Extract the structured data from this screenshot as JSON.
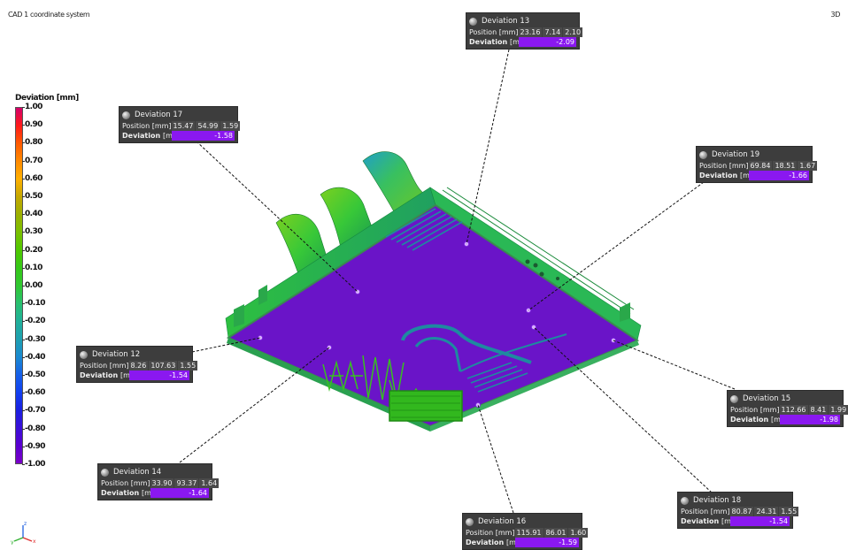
{
  "header": {
    "left": "CAD 1 coordinate system",
    "right": "3D"
  },
  "legend": {
    "title": "Deviation [mm]",
    "ticks": [
      "1.00",
      "0.90",
      "0.80",
      "0.70",
      "0.60",
      "0.50",
      "0.40",
      "0.30",
      "0.20",
      "0.10",
      "0.00",
      "-0.10",
      "-0.20",
      "-0.30",
      "-0.40",
      "-0.50",
      "-0.60",
      "-0.70",
      "-0.80",
      "-0.90",
      "-1.00"
    ],
    "colors": [
      "#d4006a",
      "#ff1a1a",
      "#ff5a00",
      "#ff8a00",
      "#ffb000",
      "#c4a800",
      "#9cb000",
      "#7ac000",
      "#4fc800",
      "#35c818",
      "#30c830",
      "#28c070",
      "#20b09a",
      "#1ea0b0",
      "#1a8ad0",
      "#1660e8",
      "#1240f0",
      "#1a20e0",
      "#3a10d8",
      "#5a00d0",
      "#7a00c8"
    ]
  },
  "triad": {
    "z": "z",
    "x": "x",
    "y": "y"
  },
  "callouts": [
    {
      "id": "13",
      "title": "Deviation 13",
      "position_label": "Position",
      "deviation_label": "Deviation",
      "unit": "[mm]",
      "x": "23.16",
      "y": "7.14",
      "z": "2.10",
      "value": "-2.09"
    },
    {
      "id": "17",
      "title": "Deviation 17",
      "position_label": "Position",
      "deviation_label": "Deviation",
      "unit": "[mm]",
      "x": "15.47",
      "y": "54.99",
      "z": "1.59",
      "value": "-1.58"
    },
    {
      "id": "19",
      "title": "Deviation 19",
      "position_label": "Position",
      "deviation_label": "Deviation",
      "unit": "[mm]",
      "x": "69.84",
      "y": "18.51",
      "z": "1.67",
      "value": "-1.66"
    },
    {
      "id": "12",
      "title": "Deviation 12",
      "position_label": "Position",
      "deviation_label": "Deviation",
      "unit": "[mm]",
      "x": "8.26",
      "y": "107.63",
      "z": "1.55",
      "value": "-1.54"
    },
    {
      "id": "15",
      "title": "Deviation 15",
      "position_label": "Position",
      "deviation_label": "Deviation",
      "unit": "[mm]",
      "x": "112.66",
      "y": "8.41",
      "z": "1.99",
      "value": "-1.98"
    },
    {
      "id": "14",
      "title": "Deviation 14",
      "position_label": "Position",
      "deviation_label": "Deviation",
      "unit": "[mm]",
      "x": "33.90",
      "y": "93.37",
      "z": "1.64",
      "value": "-1.64"
    },
    {
      "id": "18",
      "title": "Deviation 18",
      "position_label": "Position",
      "deviation_label": "Deviation",
      "unit": "[mm]",
      "x": "80.87",
      "y": "24.31",
      "z": "1.55",
      "value": "-1.54"
    },
    {
      "id": "16",
      "title": "Deviation 16",
      "position_label": "Position",
      "deviation_label": "Deviation",
      "unit": "[mm]",
      "x": "115.91",
      "y": "86.01",
      "z": "1.60",
      "value": "-1.59"
    }
  ]
}
